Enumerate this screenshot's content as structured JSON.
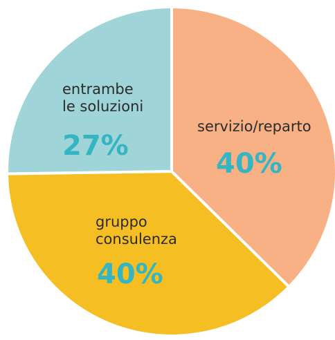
{
  "chart_data": {
    "type": "pie",
    "categories": [
      [
        "servizio/reparto"
      ],
      [
        "gruppo",
        "consulenza"
      ],
      [
        "entrambe",
        "le soluzioni"
      ]
    ],
    "values": [
      40,
      40,
      27
    ],
    "value_labels": [
      "40%",
      "40%",
      "27%"
    ],
    "colors": [
      "#f7b184",
      "#f5bf23",
      "#9fd4d8"
    ]
  }
}
